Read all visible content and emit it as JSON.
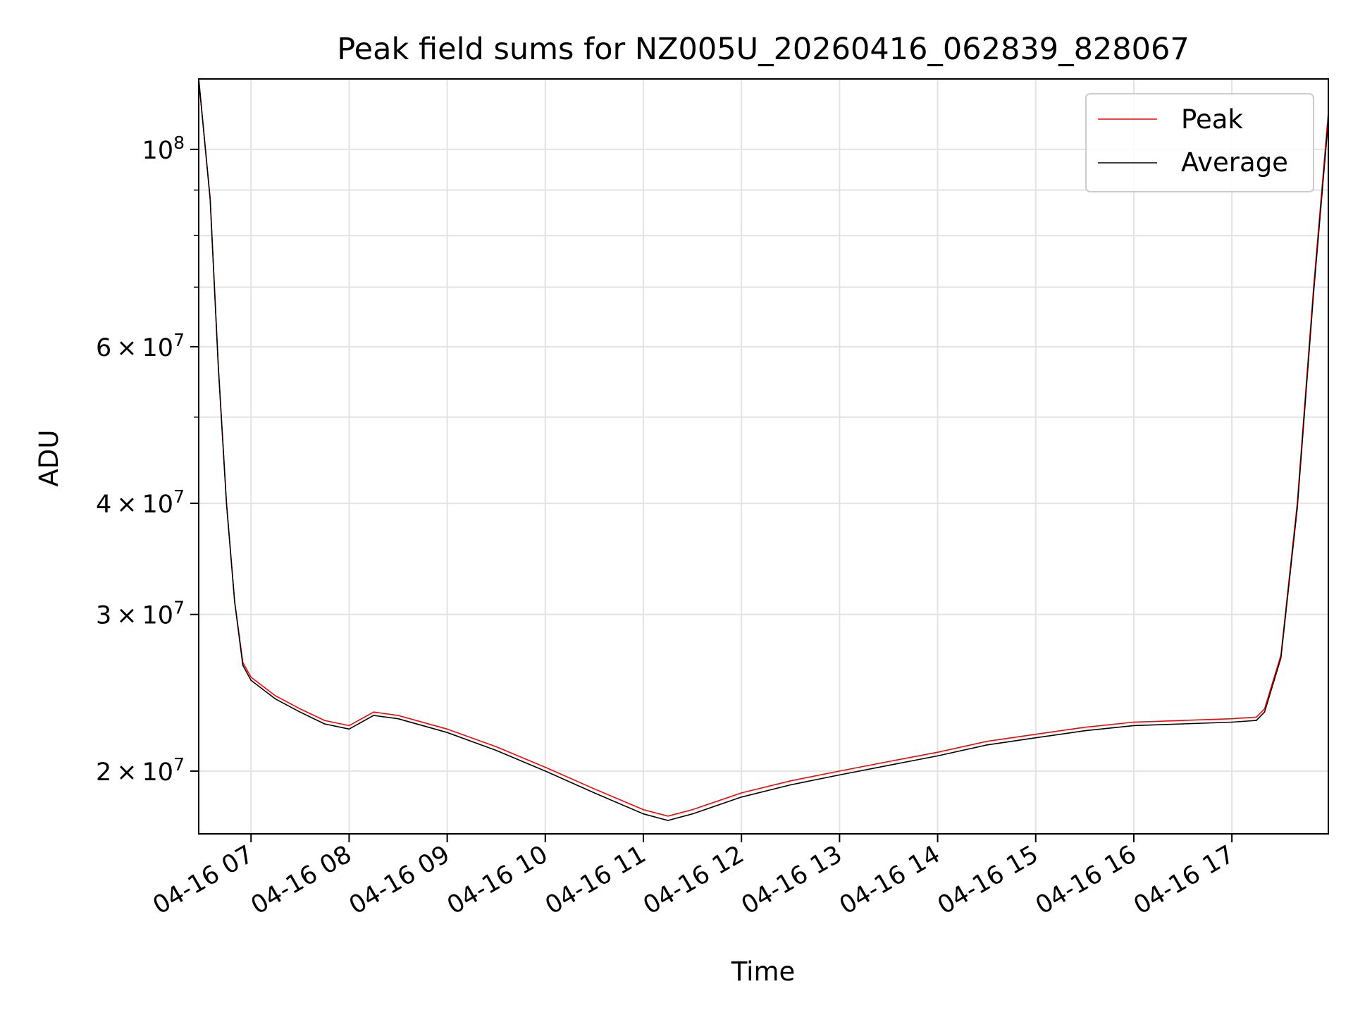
{
  "chart_data": {
    "type": "line",
    "title": "Peak field sums for NZ005U_20260416_062839_828067",
    "xlabel": "Time",
    "ylabel": "ADU",
    "y_scale": "log",
    "ylim": [
      17000000,
      120000000
    ],
    "xlim": [
      "2026-04-16 06:28",
      "2026-04-16 17:59"
    ],
    "grid": true,
    "legend_position": "top-right",
    "x_ticks": [
      {
        "value": "2026-04-16 07:00",
        "label": "04-16 07"
      },
      {
        "value": "2026-04-16 08:00",
        "label": "04-16 08"
      },
      {
        "value": "2026-04-16 09:00",
        "label": "04-16 09"
      },
      {
        "value": "2026-04-16 10:00",
        "label": "04-16 10"
      },
      {
        "value": "2026-04-16 11:00",
        "label": "04-16 11"
      },
      {
        "value": "2026-04-16 12:00",
        "label": "04-16 12"
      },
      {
        "value": "2026-04-16 13:00",
        "label": "04-16 13"
      },
      {
        "value": "2026-04-16 14:00",
        "label": "04-16 14"
      },
      {
        "value": "2026-04-16 15:00",
        "label": "04-16 15"
      },
      {
        "value": "2026-04-16 16:00",
        "label": "04-16 16"
      },
      {
        "value": "2026-04-16 17:00",
        "label": "04-16 17"
      }
    ],
    "y_ticks": [
      {
        "value": 20000000,
        "mantissa": "2",
        "base": "10",
        "exp": "7"
      },
      {
        "value": 30000000,
        "mantissa": "3",
        "base": "10",
        "exp": "7"
      },
      {
        "value": 40000000,
        "mantissa": "4",
        "base": "10",
        "exp": "7"
      },
      {
        "value": 60000000,
        "mantissa": "6",
        "base": "10",
        "exp": "7"
      },
      {
        "value": 100000000,
        "mantissa": "",
        "base": "10",
        "exp": "8"
      }
    ],
    "y_minor_ticks": [
      50000000,
      70000000,
      80000000,
      90000000
    ],
    "series": [
      {
        "name": "Peak",
        "color": "#ff0000",
        "x": [
          "2026-04-16 06:28",
          "2026-04-16 06:35",
          "2026-04-16 06:40",
          "2026-04-16 06:45",
          "2026-04-16 06:50",
          "2026-04-16 06:55",
          "2026-04-16 07:00",
          "2026-04-16 07:15",
          "2026-04-16 07:30",
          "2026-04-16 07:45",
          "2026-04-16 08:00",
          "2026-04-16 08:15",
          "2026-04-16 08:30",
          "2026-04-16 09:00",
          "2026-04-16 09:30",
          "2026-04-16 10:00",
          "2026-04-16 10:30",
          "2026-04-16 11:00",
          "2026-04-16 11:15",
          "2026-04-16 11:30",
          "2026-04-16 12:00",
          "2026-04-16 12:30",
          "2026-04-16 13:00",
          "2026-04-16 13:30",
          "2026-04-16 14:00",
          "2026-04-16 14:30",
          "2026-04-16 15:00",
          "2026-04-16 15:30",
          "2026-04-16 16:00",
          "2026-04-16 16:30",
          "2026-04-16 17:00",
          "2026-04-16 17:15",
          "2026-04-16 17:20",
          "2026-04-16 17:30",
          "2026-04-16 17:40",
          "2026-04-16 17:50",
          "2026-04-16 17:59"
        ],
        "y": [
          120000000,
          88000000,
          57000000,
          40000000,
          31000000,
          26500000,
          25500000,
          24300000,
          23500000,
          22800000,
          22500000,
          23300000,
          23100000,
          22300000,
          21300000,
          20200000,
          19100000,
          18100000,
          17800000,
          18100000,
          18900000,
          19500000,
          20000000,
          20500000,
          21000000,
          21600000,
          22000000,
          22400000,
          22700000,
          22800000,
          22900000,
          23000000,
          23500000,
          27000000,
          40000000,
          70000000,
          110000000
        ]
      },
      {
        "name": "Average",
        "color": "#000000",
        "x": [
          "2026-04-16 06:28",
          "2026-04-16 06:35",
          "2026-04-16 06:40",
          "2026-04-16 06:45",
          "2026-04-16 06:50",
          "2026-04-16 06:55",
          "2026-04-16 07:00",
          "2026-04-16 07:15",
          "2026-04-16 07:30",
          "2026-04-16 07:45",
          "2026-04-16 08:00",
          "2026-04-16 08:15",
          "2026-04-16 08:30",
          "2026-04-16 09:00",
          "2026-04-16 09:30",
          "2026-04-16 10:00",
          "2026-04-16 10:30",
          "2026-04-16 11:00",
          "2026-04-16 11:15",
          "2026-04-16 11:30",
          "2026-04-16 12:00",
          "2026-04-16 12:30",
          "2026-04-16 13:00",
          "2026-04-16 13:30",
          "2026-04-16 14:00",
          "2026-04-16 14:30",
          "2026-04-16 15:00",
          "2026-04-16 15:30",
          "2026-04-16 16:00",
          "2026-04-16 16:30",
          "2026-04-16 17:00",
          "2026-04-16 17:15",
          "2026-04-16 17:20",
          "2026-04-16 17:30",
          "2026-04-16 17:40",
          "2026-04-16 17:50",
          "2026-04-16 17:59"
        ],
        "y": [
          120000000,
          88000000,
          57000000,
          40000000,
          31000000,
          26300000,
          25300000,
          24100000,
          23300000,
          22600000,
          22300000,
          23100000,
          22900000,
          22100000,
          21100000,
          20000000,
          18900000,
          17900000,
          17600000,
          17900000,
          18700000,
          19300000,
          19800000,
          20300000,
          20800000,
          21400000,
          21800000,
          22200000,
          22500000,
          22600000,
          22700000,
          22800000,
          23300000,
          26800000,
          39500000,
          69000000,
          108000000
        ]
      }
    ]
  }
}
